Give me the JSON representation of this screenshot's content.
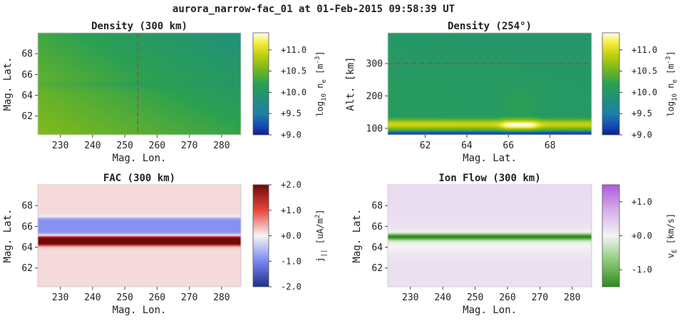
{
  "suptitle": "aurora_narrow-fac_01 at 01-Feb-2015 09:58:39 UT",
  "chart_data": [
    {
      "type": "heatmap",
      "title": "Density (300 km)",
      "xlabel": "Mag. Lon.",
      "ylabel": "Mag. Lat.",
      "xlim": [
        223,
        286
      ],
      "ylim": [
        60.2,
        70.0
      ],
      "xticks": [
        "230",
        "240",
        "250",
        "260",
        "270",
        "280"
      ],
      "yticks": [
        "62",
        "64",
        "66",
        "68"
      ],
      "field": "log10_ne",
      "description_values": {
        "corner_bottom_left": 10.55,
        "corner_top_right": 10.0,
        "band_lat": 65.0
      },
      "marker_line": {
        "orientation": "vertical",
        "value": 254,
        "color": "#cc3333",
        "style": "dashed"
      },
      "colorbar": {
        "label_main": "log",
        "label_sub": "10",
        "label_var": " n",
        "label_var_sub": "e",
        "label_unit": " [m",
        "label_unit_sup": "-3",
        "label_end": "]",
        "range": [
          9.0,
          11.4
        ],
        "colormap": "ne",
        "ticks": [
          "+9.0",
          "+9.5",
          "+10.0",
          "+10.5",
          "+11.0"
        ]
      }
    },
    {
      "type": "heatmap",
      "title": "Density (254°)",
      "xlabel": "Mag. Lat.",
      "ylabel": "Alt. [km]",
      "xlim": [
        60.2,
        70.0
      ],
      "ylim": [
        80,
        395
      ],
      "xticks": [
        "62",
        "64",
        "66",
        "68"
      ],
      "yticks": [
        "100",
        "200",
        "300"
      ],
      "field": "log10_ne",
      "description_values": {
        "peak_alt_km": 110,
        "arc_lat_range": [
          65.7,
          67.3
        ],
        "peak_value": 11.35
      },
      "marker_line": {
        "orientation": "horizontal",
        "value": 300,
        "color": "#cc3333",
        "style": "dashed"
      },
      "colorbar": {
        "label_main": "log",
        "label_sub": "10",
        "label_var": " n",
        "label_var_sub": "e",
        "label_unit": " [m",
        "label_unit_sup": "-3",
        "label_end": "]",
        "range": [
          9.0,
          11.4
        ],
        "colormap": "ne",
        "ticks": [
          "+9.0",
          "+9.5",
          "+10.0",
          "+10.5",
          "+11.0"
        ]
      }
    },
    {
      "type": "heatmap",
      "title": "FAC (300 km)",
      "xlabel": "Mag. Lon.",
      "ylabel": "Mag. Lat.",
      "xlim": [
        223,
        286
      ],
      "ylim": [
        60.2,
        70.0
      ],
      "xticks": [
        "230",
        "240",
        "250",
        "260",
        "270",
        "280"
      ],
      "yticks": [
        "62",
        "64",
        "66",
        "68"
      ],
      "field": "j_parallel",
      "description_values": {
        "up_band_lat": [
          64.2,
          65.0
        ],
        "up_value": 2.0,
        "down_band_lat": [
          65.2,
          66.8
        ],
        "down_value": -0.9,
        "background": 0.15
      },
      "colorbar": {
        "label_main": "j",
        "label_sub": "||",
        "label_unit": " [uA/m",
        "label_unit_sup": "2",
        "label_end": "]",
        "range": [
          -2.0,
          2.0
        ],
        "colormap": "fac",
        "ticks": [
          "-2.0",
          "-1.0",
          "+0.0",
          "+1.0",
          "+2.0"
        ]
      }
    },
    {
      "type": "heatmap",
      "title": "Ion Flow (300 km)",
      "xlabel": "Mag. Lon.",
      "ylabel": "Mag. Lat.",
      "xlim": [
        223,
        286
      ],
      "ylim": [
        60.2,
        70.0
      ],
      "xticks": [
        "230",
        "240",
        "250",
        "260",
        "270",
        "280"
      ],
      "yticks": [
        "62",
        "64",
        "66",
        "68"
      ],
      "field": "v_E",
      "description_values": {
        "jet_lat": 65.0,
        "jet_value": -1.4,
        "background": 0.2
      },
      "colorbar": {
        "label_main": "v",
        "label_sub": "E",
        "label_unit": " [km/s]",
        "range": [
          -1.5,
          1.5
        ],
        "colormap": "flow",
        "ticks": [
          "-1.0",
          "+0.0",
          "+1.0"
        ]
      }
    }
  ]
}
